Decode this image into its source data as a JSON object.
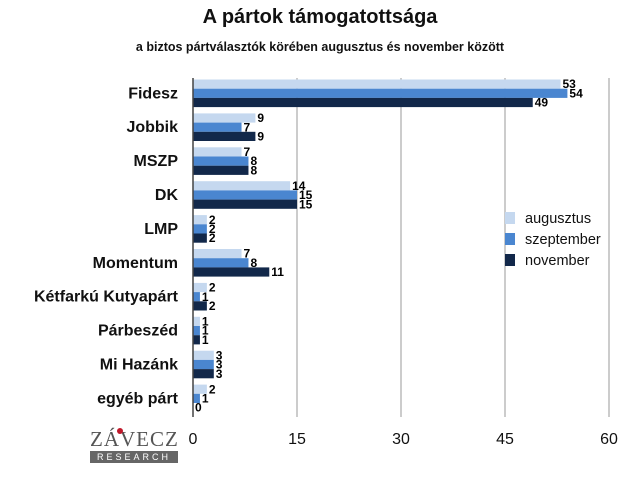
{
  "chart_data": {
    "type": "bar",
    "orientation": "horizontal",
    "title": "A pártok támogatottsága",
    "subtitle": "a biztos pártválasztók körében augusztus és november között",
    "categories": [
      "Fidesz",
      "Jobbik",
      "MSZP",
      "DK",
      "LMP",
      "Momentum",
      "Kétfarkú Kutyapárt",
      "Párbeszéd",
      "Mi Hazánk",
      "egyéb párt"
    ],
    "series": [
      {
        "name": "augusztus",
        "color": "#c5d8ef",
        "values": [
          53,
          9,
          7,
          14,
          2,
          7,
          2,
          1,
          3,
          2
        ]
      },
      {
        "name": "szeptember",
        "color": "#4a86d0",
        "values": [
          54,
          7,
          8,
          15,
          2,
          8,
          1,
          1,
          3,
          1
        ]
      },
      {
        "name": "november",
        "color": "#12284a",
        "values": [
          49,
          9,
          8,
          15,
          2,
          11,
          2,
          1,
          3,
          0
        ]
      }
    ],
    "xlim": [
      0,
      60
    ],
    "xticks": [
      0,
      15,
      30,
      45,
      60
    ],
    "grid": true,
    "legend_position": "right"
  },
  "logo": {
    "name": "ZÁVECZ",
    "tagline": "RESEARCH"
  }
}
